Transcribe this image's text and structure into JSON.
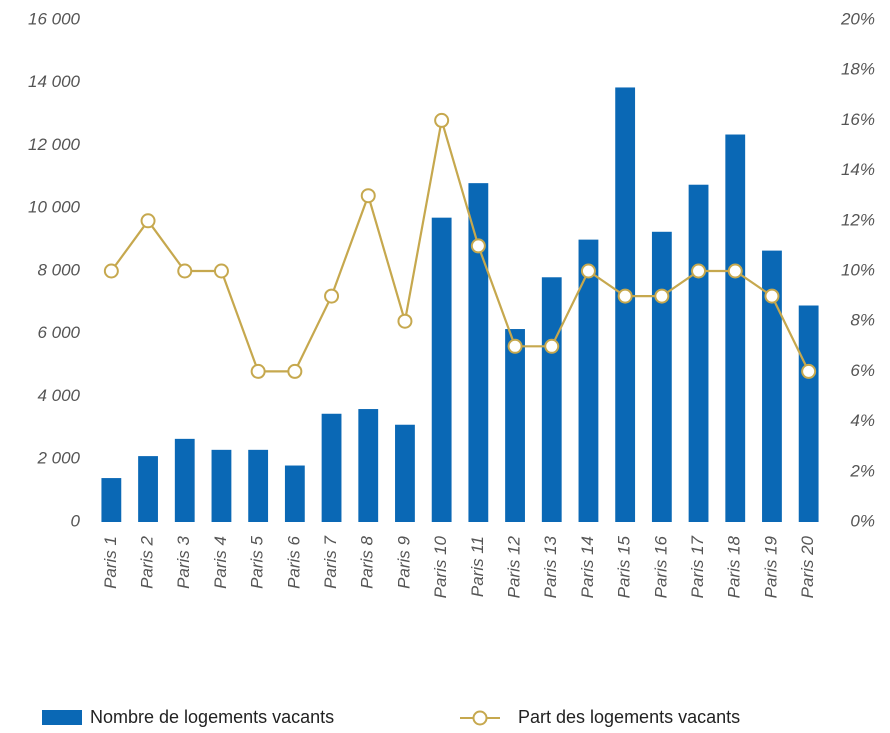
{
  "chart_data": {
    "type": "bar",
    "categories": [
      "Paris 1",
      "Paris 2",
      "Paris 3",
      "Paris 4",
      "Paris 5",
      "Paris 6",
      "Paris 7",
      "Paris 8",
      "Paris 9",
      "Paris 10",
      "Paris 11",
      "Paris 12",
      "Paris 13",
      "Paris 14",
      "Paris 15",
      "Paris 16",
      "Paris 17",
      "Paris 18",
      "Paris 19",
      "Paris 20"
    ],
    "series": [
      {
        "name": "Nombre de logements vacants",
        "type": "bar",
        "color": "#0a68b5",
        "axis": "y",
        "values": [
          1400,
          2100,
          2650,
          2300,
          2300,
          1800,
          3450,
          3600,
          3100,
          9700,
          10800,
          6150,
          7800,
          9000,
          13850,
          9250,
          10750,
          12350,
          8650,
          6900
        ]
      },
      {
        "name": "Part des logements vacants",
        "type": "line",
        "color": "#c6a84e",
        "axis": "y2",
        "values": [
          10,
          12,
          10,
          10,
          6,
          6,
          9,
          13,
          8,
          16,
          11,
          7,
          7,
          10,
          9,
          9,
          10,
          10,
          9,
          6
        ]
      }
    ],
    "ylim": [
      0,
      16000
    ],
    "yticks": [
      0,
      {
        "value": 2000,
        "label": "2 000"
      },
      {
        "value": 4000,
        "label": "4 000"
      },
      {
        "value": 6000,
        "label": "6 000"
      },
      {
        "value": 8000,
        "label": "8 000"
      },
      {
        "value": 10000,
        "label": "10 000"
      },
      {
        "value": 12000,
        "label": "12 000"
      },
      {
        "value": 14000,
        "label": "14 000"
      },
      {
        "value": 16000,
        "label": "16 000"
      }
    ],
    "y2lim": [
      0,
      20
    ],
    "y2ticks": [
      {
        "value": 0,
        "label": "0%"
      },
      {
        "value": 2,
        "label": "2%"
      },
      {
        "value": 4,
        "label": "4%"
      },
      {
        "value": 6,
        "label": "6%"
      },
      {
        "value": 8,
        "label": "8%"
      },
      {
        "value": 10,
        "label": "10%"
      },
      {
        "value": 12,
        "label": "12%"
      },
      {
        "value": 14,
        "label": "14%"
      },
      {
        "value": 16,
        "label": "16%"
      },
      {
        "value": 18,
        "label": "18%"
      },
      {
        "value": 20,
        "label": "20%"
      }
    ],
    "grid": false,
    "legend": "bottom"
  }
}
